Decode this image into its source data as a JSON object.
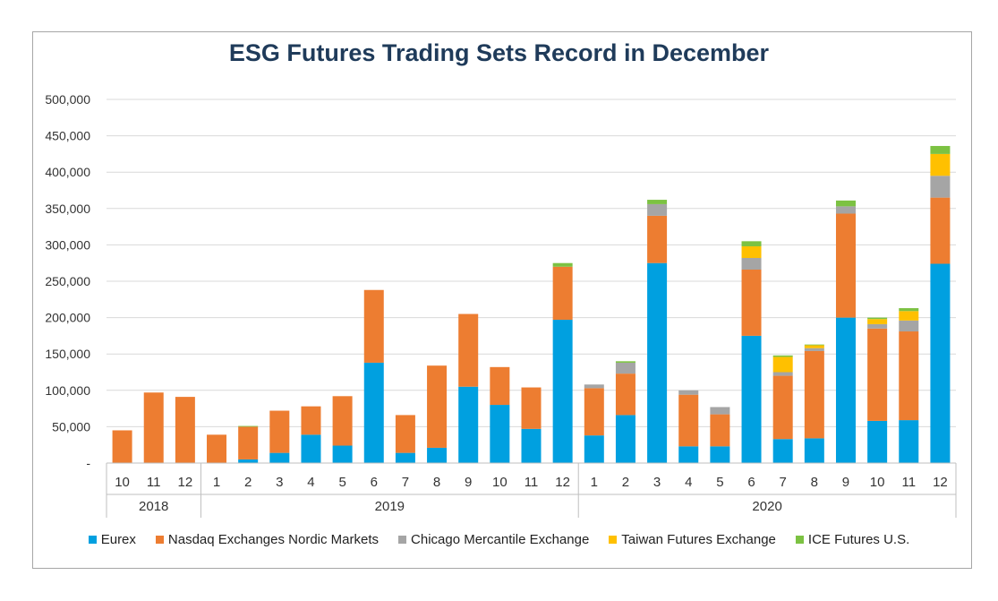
{
  "chart_data": {
    "type": "bar",
    "stacked": true,
    "title": "ESG Futures Trading Sets Record in December",
    "xlabel": "",
    "ylabel": "",
    "ylim": [
      0,
      500000
    ],
    "yticks": [
      "-",
      "50,000",
      "100,000",
      "150,000",
      "200,000",
      "250,000",
      "300,000",
      "350,000",
      "400,000",
      "450,000",
      "500,000"
    ],
    "grid": true,
    "legend_position": "bottom",
    "categories": [
      "10",
      "11",
      "12",
      "1",
      "2",
      "3",
      "4",
      "5",
      "6",
      "7",
      "8",
      "9",
      "10",
      "11",
      "12",
      "1",
      "2",
      "3",
      "4",
      "5",
      "6",
      "7",
      "8",
      "9",
      "10",
      "11",
      "12"
    ],
    "year_groups": [
      {
        "label": "2018",
        "count": 3
      },
      {
        "label": "2019",
        "count": 12
      },
      {
        "label": "2020",
        "count": 12
      }
    ],
    "series": [
      {
        "name": "Eurex",
        "color": "#00a0e0",
        "values": [
          0,
          0,
          0,
          0,
          5000,
          14000,
          39000,
          24000,
          138000,
          14000,
          21000,
          105000,
          80000,
          47000,
          197000,
          38000,
          66000,
          275000,
          23000,
          23000,
          175000,
          33000,
          34000,
          200000,
          58000,
          59000,
          274000
        ]
      },
      {
        "name": "Nasdaq Exchanges Nordic Markets",
        "color": "#ed7d31",
        "values": [
          45000,
          97000,
          91000,
          39000,
          45000,
          58000,
          39000,
          68000,
          100000,
          52000,
          113000,
          100000,
          52000,
          57000,
          73000,
          65000,
          57000,
          65000,
          71000,
          44000,
          91000,
          87000,
          120000,
          143000,
          127000,
          122000,
          91000
        ]
      },
      {
        "name": "Chicago Mercantile Exchange",
        "color": "#a5a5a5",
        "values": [
          0,
          0,
          0,
          0,
          0,
          0,
          0,
          0,
          0,
          0,
          0,
          0,
          0,
          0,
          0,
          5000,
          15000,
          16000,
          6000,
          10000,
          16000,
          5000,
          4000,
          10000,
          6000,
          15000,
          30000
        ]
      },
      {
        "name": "Taiwan Futures Exchange",
        "color": "#ffc000",
        "values": [
          0,
          0,
          0,
          0,
          0,
          0,
          0,
          0,
          0,
          0,
          0,
          0,
          0,
          0,
          0,
          0,
          0,
          0,
          0,
          0,
          16000,
          21000,
          4000,
          0,
          7000,
          13000,
          30000
        ]
      },
      {
        "name": "ICE Futures U.S.",
        "color": "#7cc242",
        "values": [
          0,
          0,
          0,
          0,
          1000,
          0,
          0,
          0,
          0,
          0,
          0,
          0,
          0,
          0,
          5000,
          0,
          2000,
          6000,
          0,
          0,
          7000,
          2000,
          1000,
          8000,
          2000,
          4000,
          11000
        ]
      }
    ]
  }
}
